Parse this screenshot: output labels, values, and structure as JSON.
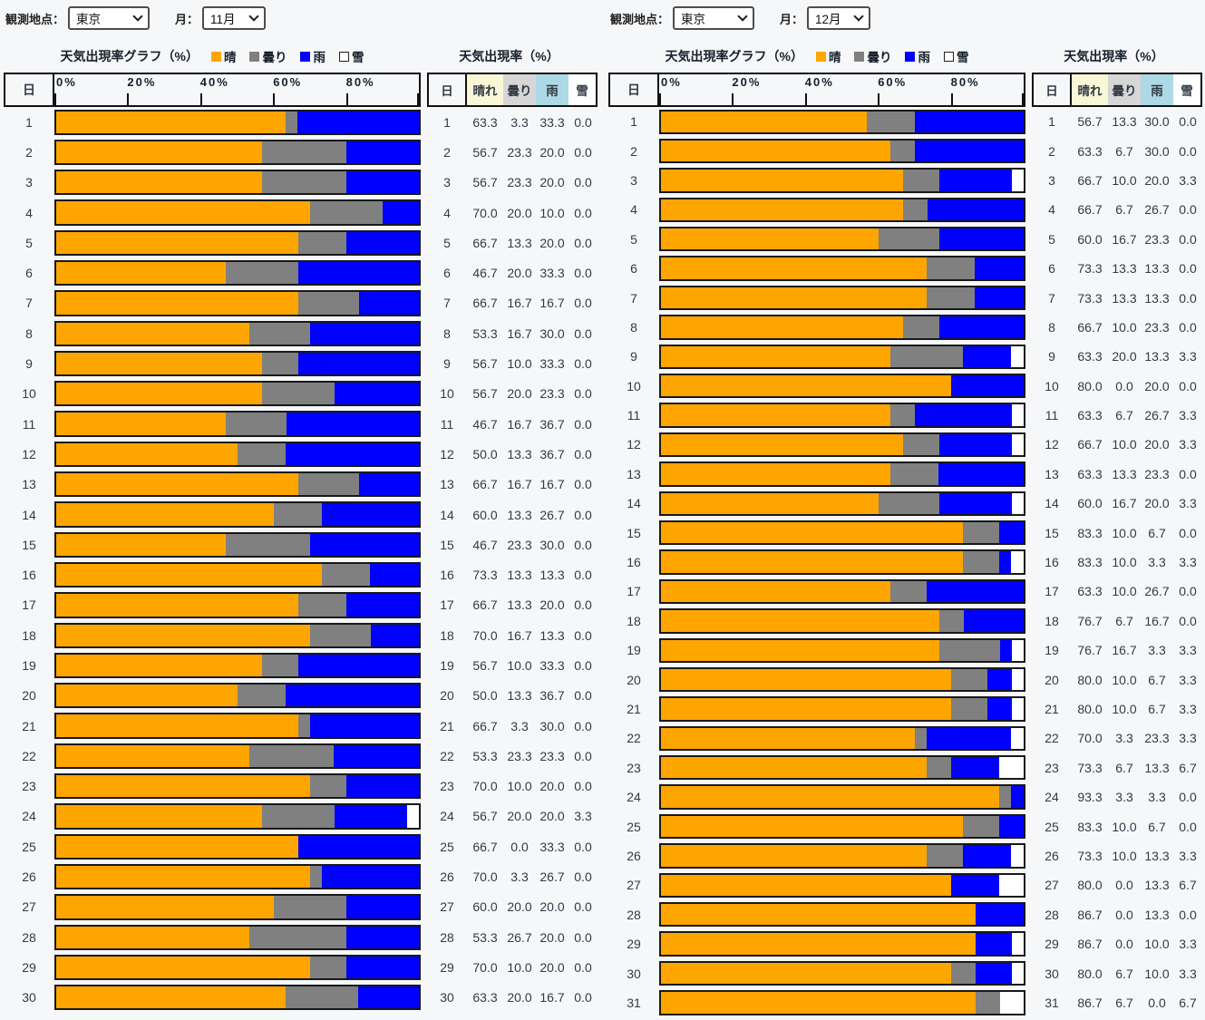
{
  "colors": {
    "sunny": "#FFA500",
    "cloudy": "#808080",
    "rain": "#0000FF",
    "snow": "#FFFFFF",
    "table_sunny_bg": "#FAF7D8",
    "table_cloudy_bg": "#D6D6D6",
    "table_rain_bg": "#ADD8E6",
    "table_snow_bg": "#FFFFFF",
    "bar_border": "#181818",
    "text": "#323A45"
  },
  "panels": [
    {
      "station_label": "観測地点：",
      "station_value": "東京",
      "month_label": "月：",
      "month_value": "11月",
      "graph_title": "天気出現率グラフ（%）",
      "table_title": "天気出現率（%）",
      "day_header": "日",
      "table_headers": {
        "day": "日",
        "sunny": "晴れ",
        "cloudy": "曇り",
        "rain": "雨",
        "snow": "雪"
      }
    },
    {
      "station_label": "観測地点：",
      "station_value": "東京",
      "month_label": "月：",
      "month_value": "12月",
      "graph_title": "天気出現率グラフ（%）",
      "table_title": "天気出現率（%）",
      "day_header": "日",
      "table_headers": {
        "day": "日",
        "sunny": "晴れ",
        "cloudy": "曇り",
        "rain": "雨",
        "snow": "雪"
      }
    }
  ],
  "chart_data": [
    {
      "type": "bar",
      "stacked": true,
      "orientation": "horizontal",
      "title": "天気出現率グラフ（%）",
      "location": "東京",
      "month": "11月",
      "xlim": [
        0,
        100
      ],
      "x_tick_labels": [
        "0%",
        "20%",
        "40%",
        "60%",
        "80%"
      ],
      "categories": [
        1,
        2,
        3,
        4,
        5,
        6,
        7,
        8,
        9,
        10,
        11,
        12,
        13,
        14,
        15,
        16,
        17,
        18,
        19,
        20,
        21,
        22,
        23,
        24,
        25,
        26,
        27,
        28,
        29,
        30
      ],
      "series": [
        {
          "name": "晴",
          "color": "#FFA500",
          "values": [
            63.3,
            56.7,
            56.7,
            70.0,
            66.7,
            46.7,
            66.7,
            53.3,
            56.7,
            56.7,
            46.7,
            50.0,
            66.7,
            60.0,
            46.7,
            73.3,
            66.7,
            70.0,
            56.7,
            50.0,
            66.7,
            53.3,
            70.0,
            56.7,
            66.7,
            70.0,
            60.0,
            53.3,
            70.0,
            63.3
          ]
        },
        {
          "name": "曇り",
          "color": "#808080",
          "values": [
            3.3,
            23.3,
            23.3,
            20.0,
            13.3,
            20.0,
            16.7,
            16.7,
            10.0,
            20.0,
            16.7,
            13.3,
            16.7,
            13.3,
            23.3,
            13.3,
            13.3,
            16.7,
            10.0,
            13.3,
            3.3,
            23.3,
            10.0,
            20.0,
            0.0,
            3.3,
            20.0,
            26.7,
            10.0,
            20.0
          ]
        },
        {
          "name": "雨",
          "color": "#0000FF",
          "values": [
            33.3,
            20.0,
            20.0,
            10.0,
            20.0,
            33.3,
            16.7,
            30.0,
            33.3,
            23.3,
            36.7,
            36.7,
            16.7,
            26.7,
            30.0,
            13.3,
            20.0,
            13.3,
            33.3,
            36.7,
            30.0,
            23.3,
            20.0,
            20.0,
            33.3,
            26.7,
            20.0,
            20.0,
            20.0,
            16.7
          ]
        },
        {
          "name": "雪",
          "color": "#FFFFFF",
          "values": [
            0.0,
            0.0,
            0.0,
            0.0,
            0.0,
            0.0,
            0.0,
            0.0,
            0.0,
            0.0,
            0.0,
            0.0,
            0.0,
            0.0,
            0.0,
            0.0,
            0.0,
            0.0,
            0.0,
            0.0,
            0.0,
            0.0,
            0.0,
            3.3,
            0.0,
            0.0,
            0.0,
            0.0,
            0.0,
            0.0
          ]
        }
      ]
    },
    {
      "type": "bar",
      "stacked": true,
      "orientation": "horizontal",
      "title": "天気出現率グラフ（%）",
      "location": "東京",
      "month": "12月",
      "xlim": [
        0,
        100
      ],
      "x_tick_labels": [
        "0%",
        "20%",
        "40%",
        "60%",
        "80%"
      ],
      "categories": [
        1,
        2,
        3,
        4,
        5,
        6,
        7,
        8,
        9,
        10,
        11,
        12,
        13,
        14,
        15,
        16,
        17,
        18,
        19,
        20,
        21,
        22,
        23,
        24,
        25,
        26,
        27,
        28,
        29,
        30,
        31
      ],
      "series": [
        {
          "name": "晴",
          "color": "#FFA500",
          "values": [
            56.7,
            63.3,
            66.7,
            66.7,
            60.0,
            73.3,
            73.3,
            66.7,
            63.3,
            80.0,
            63.3,
            66.7,
            63.3,
            60.0,
            83.3,
            83.3,
            63.3,
            76.7,
            76.7,
            80.0,
            80.0,
            70.0,
            73.3,
            93.3,
            83.3,
            73.3,
            80.0,
            86.7,
            86.7,
            80.0,
            86.7
          ]
        },
        {
          "name": "曇り",
          "color": "#808080",
          "values": [
            13.3,
            6.7,
            10.0,
            6.7,
            16.7,
            13.3,
            13.3,
            10.0,
            20.0,
            0.0,
            6.7,
            10.0,
            13.3,
            16.7,
            10.0,
            10.0,
            10.0,
            6.7,
            16.7,
            10.0,
            10.0,
            3.3,
            6.7,
            3.3,
            10.0,
            10.0,
            0.0,
            0.0,
            0.0,
            6.7,
            6.7
          ]
        },
        {
          "name": "雨",
          "color": "#0000FF",
          "values": [
            30.0,
            30.0,
            20.0,
            26.7,
            23.3,
            13.3,
            13.3,
            23.3,
            13.3,
            20.0,
            26.7,
            20.0,
            23.3,
            20.0,
            6.7,
            3.3,
            26.7,
            16.7,
            3.3,
            6.7,
            6.7,
            23.3,
            13.3,
            3.3,
            6.7,
            13.3,
            13.3,
            13.3,
            10.0,
            10.0,
            0.0
          ]
        },
        {
          "name": "雪",
          "color": "#FFFFFF",
          "values": [
            0.0,
            0.0,
            3.3,
            0.0,
            0.0,
            0.0,
            0.0,
            0.0,
            3.3,
            0.0,
            3.3,
            3.3,
            0.0,
            3.3,
            0.0,
            3.3,
            0.0,
            0.0,
            3.3,
            3.3,
            3.3,
            3.3,
            6.7,
            0.0,
            0.0,
            3.3,
            6.7,
            0.0,
            3.3,
            3.3,
            6.7
          ]
        }
      ]
    }
  ]
}
